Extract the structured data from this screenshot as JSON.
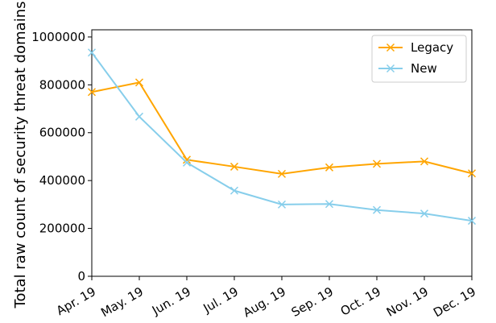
{
  "chart_data": {
    "type": "line",
    "title": "",
    "xlabel": "",
    "ylabel": "Total raw count of security threat domains",
    "categories": [
      "Apr. 19",
      "May. 19",
      "Jun. 19",
      "Jul. 19",
      "Aug. 19",
      "Sep. 19",
      "Oct. 19",
      "Nov. 19",
      "Dec. 19"
    ],
    "ylim": [
      0,
      1030000
    ],
    "yticks": [
      0,
      200000,
      400000,
      600000,
      800000,
      1000000
    ],
    "ytick_labels": [
      "0",
      "200000",
      "400000",
      "600000",
      "800000",
      "1000000"
    ],
    "grid": false,
    "legend_position": "top-right",
    "series": [
      {
        "name": "Legacy",
        "color": "#FFA500",
        "marker": "x",
        "values": [
          770000,
          810000,
          487000,
          458000,
          428000,
          455000,
          470000,
          480000,
          430000
        ]
      },
      {
        "name": "New",
        "color": "#87CEEB",
        "marker": "x",
        "values": [
          935000,
          667000,
          475000,
          358000,
          300000,
          302000,
          277000,
          262000,
          232000
        ]
      }
    ]
  }
}
